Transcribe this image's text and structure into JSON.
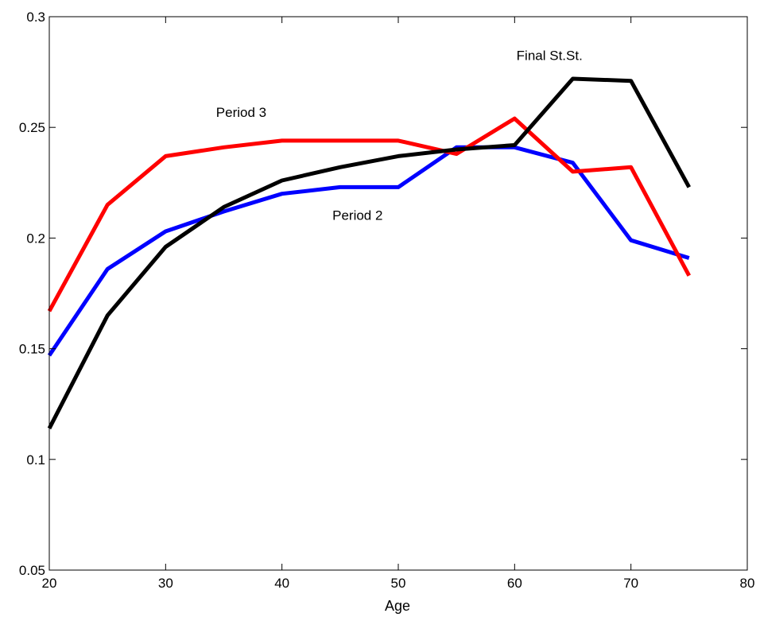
{
  "chart_data": {
    "type": "line",
    "title": "",
    "xlabel": "Age",
    "ylabel": "",
    "xlim": [
      20,
      80
    ],
    "ylim": [
      0.05,
      0.3
    ],
    "xticks": [
      20,
      30,
      40,
      50,
      60,
      70,
      80
    ],
    "yticks": [
      0.05,
      0.1,
      0.15,
      0.2,
      0.25,
      0.3
    ],
    "xtick_labels": [
      "20",
      "30",
      "40",
      "50",
      "60",
      "70",
      "80"
    ],
    "ytick_labels": [
      "0.05",
      "0.1",
      "0.15",
      "0.2",
      "0.25",
      "0.3"
    ],
    "grid": false,
    "x": [
      20,
      25,
      30,
      35,
      40,
      45,
      50,
      55,
      60,
      65,
      70,
      75
    ],
    "series": [
      {
        "color": "#0000ff",
        "values": [
          0.147,
          0.186,
          0.203,
          0.212,
          0.22,
          0.223,
          0.223,
          0.241,
          0.241,
          0.234,
          0.199,
          0.191
        ]
      },
      {
        "color": "#ff0000",
        "values": [
          0.167,
          0.215,
          0.237,
          0.241,
          0.244,
          0.244,
          0.244,
          0.238,
          0.254,
          0.23,
          0.232,
          0.183
        ]
      },
      {
        "color": "#000000",
        "values": [
          0.114,
          0.165,
          0.196,
          0.214,
          0.226,
          0.232,
          0.237,
          0.24,
          0.242,
          0.272,
          0.271,
          0.223
        ]
      }
    ],
    "annotations": [
      {
        "text": "Period 3",
        "x": 36.5,
        "y": 0.2548
      },
      {
        "text": "Period 2",
        "x": 46.5,
        "y": 0.2083
      },
      {
        "text": "Final St.St.",
        "x": 63,
        "y": 0.2805
      }
    ]
  }
}
